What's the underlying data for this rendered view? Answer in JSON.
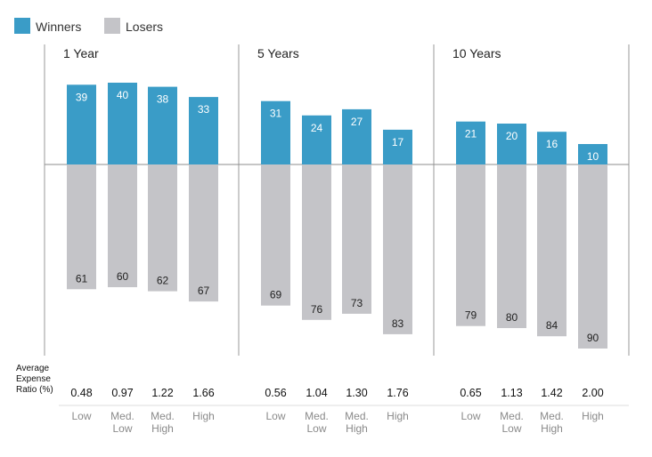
{
  "chart_data": {
    "type": "bar",
    "title": "",
    "legend": [
      {
        "name": "Winners",
        "color": "#3a9cc7"
      },
      {
        "name": "Losers",
        "color": "#c4c4c8"
      }
    ],
    "legend_placement": "top-left",
    "categories": [
      [
        "Low"
      ],
      [
        "Med.",
        "Low"
      ],
      [
        "Med.",
        "High"
      ],
      [
        "High"
      ]
    ],
    "panels": [
      {
        "title": "1 Year",
        "winners": [
          39,
          40,
          38,
          33
        ],
        "losers": [
          61,
          60,
          62,
          67
        ],
        "expense_ratio": [
          "0.48",
          "0.97",
          "1.22",
          "1.66"
        ]
      },
      {
        "title": "5 Years",
        "winners": [
          31,
          24,
          27,
          17
        ],
        "losers": [
          69,
          76,
          73,
          83
        ],
        "expense_ratio": [
          "0.56",
          "1.04",
          "1.30",
          "1.76"
        ]
      },
      {
        "title": "10 Years",
        "winners": [
          21,
          20,
          16,
          10
        ],
        "losers": [
          79,
          80,
          84,
          90
        ],
        "expense_ratio": [
          "0.65",
          "1.13",
          "1.42",
          "2.00"
        ]
      }
    ],
    "expense_ratio_label": [
      "Average",
      "Expense",
      "Ratio (%)"
    ],
    "grid": false
  }
}
